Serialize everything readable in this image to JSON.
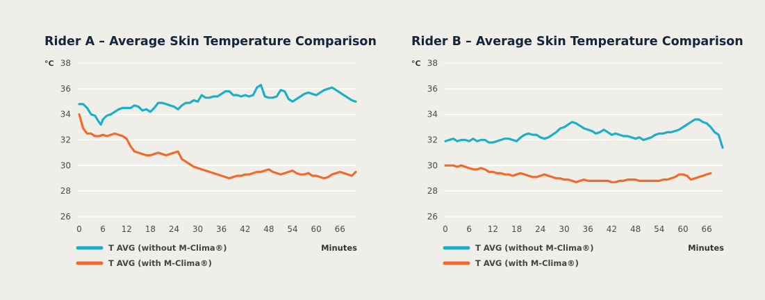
{
  "colors": {
    "background": "#efeee9",
    "without": "#1ab0c9",
    "with": "#f26a2a",
    "title": "#16253a"
  },
  "legend_placement": "bottom-left",
  "chart_data": [
    {
      "type": "line",
      "title": "Rider A – Average Skin Temperature Comparison",
      "ylabel": "°C",
      "xlabel": "Minutes",
      "ylim": [
        26,
        38
      ],
      "xlim": [
        0,
        70
      ],
      "yticks": [
        26,
        28,
        30,
        32,
        34,
        36,
        38
      ],
      "xticks": [
        0,
        6,
        12,
        18,
        24,
        30,
        36,
        42,
        48,
        54,
        60,
        66
      ],
      "grid": true,
      "series": [
        {
          "name": "T AVG (without M-Clima®)",
          "color": "#1ab0c9",
          "x": [
            0,
            1,
            2,
            3,
            4,
            5,
            5.5,
            6,
            7,
            8,
            9,
            10,
            11,
            12,
            13,
            14,
            15,
            16,
            17,
            18,
            19,
            20,
            21,
            22,
            23,
            24,
            25,
            26,
            27,
            28,
            29,
            30,
            31,
            32,
            33,
            34,
            35,
            36,
            37,
            38,
            39,
            40,
            41,
            42,
            43,
            44,
            45,
            46,
            47,
            48,
            49,
            50,
            51,
            52,
            53,
            54,
            55,
            56,
            57,
            58,
            59,
            60,
            61,
            62,
            63,
            64,
            65,
            66,
            67,
            68,
            69,
            70
          ],
          "values": [
            34.8,
            34.8,
            34.5,
            34.0,
            33.9,
            33.4,
            33.2,
            33.6,
            33.9,
            34.0,
            34.2,
            34.4,
            34.5,
            34.5,
            34.5,
            34.7,
            34.6,
            34.3,
            34.4,
            34.2,
            34.5,
            34.9,
            34.9,
            34.8,
            34.7,
            34.6,
            34.4,
            34.7,
            34.9,
            34.9,
            35.1,
            35.0,
            35.5,
            35.3,
            35.3,
            35.4,
            35.4,
            35.6,
            35.8,
            35.8,
            35.5,
            35.5,
            35.4,
            35.5,
            35.4,
            35.5,
            36.1,
            36.3,
            35.4,
            35.3,
            35.3,
            35.4,
            35.9,
            35.8,
            35.2,
            35.0,
            35.2,
            35.4,
            35.6,
            35.7,
            35.6,
            35.5,
            35.7,
            35.9,
            36.0,
            36.1,
            35.9,
            35.7,
            35.5,
            35.3,
            35.1,
            35.0
          ]
        },
        {
          "name": "T AVG (with M-Clima®)",
          "color": "#f26a2a",
          "x": [
            0,
            1,
            2,
            3,
            4,
            5,
            6,
            7,
            8,
            9,
            10,
            11,
            12,
            13,
            14,
            15,
            16,
            17,
            18,
            19,
            20,
            21,
            22,
            23,
            24,
            25,
            26,
            27,
            28,
            29,
            30,
            31,
            32,
            33,
            34,
            35,
            36,
            37,
            38,
            39,
            40,
            41,
            42,
            43,
            44,
            45,
            46,
            47,
            48,
            49,
            50,
            51,
            52,
            53,
            54,
            55,
            56,
            57,
            58,
            59,
            60,
            61,
            62,
            63,
            64,
            65,
            66,
            67,
            68,
            69,
            70
          ],
          "values": [
            34.0,
            32.9,
            32.5,
            32.5,
            32.3,
            32.3,
            32.4,
            32.3,
            32.4,
            32.5,
            32.4,
            32.3,
            32.1,
            31.5,
            31.1,
            31.0,
            30.9,
            30.8,
            30.8,
            30.9,
            31.0,
            30.9,
            30.8,
            30.9,
            31.0,
            31.1,
            30.5,
            30.3,
            30.1,
            29.9,
            29.8,
            29.7,
            29.6,
            29.5,
            29.4,
            29.3,
            29.2,
            29.1,
            29.0,
            29.1,
            29.2,
            29.2,
            29.3,
            29.3,
            29.4,
            29.5,
            29.5,
            29.6,
            29.7,
            29.5,
            29.4,
            29.3,
            29.4,
            29.5,
            29.6,
            29.4,
            29.3,
            29.3,
            29.4,
            29.2,
            29.2,
            29.1,
            29.0,
            29.1,
            29.3,
            29.4,
            29.5,
            29.4,
            29.3,
            29.2,
            29.5
          ]
        }
      ]
    },
    {
      "type": "line",
      "title": "Rider B – Average Skin Temperature Comparison",
      "ylabel": "°C",
      "xlabel": "Minutes",
      "ylim": [
        26,
        38
      ],
      "xlim": [
        0,
        70
      ],
      "yticks": [
        26,
        28,
        30,
        32,
        34,
        36,
        38
      ],
      "xticks": [
        0,
        6,
        12,
        18,
        24,
        30,
        36,
        42,
        48,
        54,
        60,
        66
      ],
      "grid": true,
      "series": [
        {
          "name": "T AVG (without M-Clima®)",
          "color": "#1ab0c9",
          "x": [
            0,
            1,
            2,
            3,
            4,
            5,
            6,
            7,
            8,
            9,
            10,
            11,
            12,
            13,
            14,
            15,
            16,
            17,
            18,
            19,
            20,
            21,
            22,
            23,
            24,
            25,
            26,
            27,
            28,
            29,
            30,
            31,
            32,
            33,
            34,
            35,
            36,
            37,
            38,
            39,
            40,
            41,
            42,
            43,
            44,
            45,
            46,
            47,
            48,
            49,
            50,
            51,
            52,
            53,
            54,
            55,
            56,
            57,
            58,
            59,
            60,
            61,
            62,
            63,
            64,
            65,
            66,
            67,
            68,
            69,
            70
          ],
          "values": [
            31.9,
            32.0,
            32.1,
            31.9,
            32.0,
            32.0,
            31.9,
            32.1,
            31.9,
            32.0,
            32.0,
            31.8,
            31.8,
            31.9,
            32.0,
            32.1,
            32.1,
            32.0,
            31.9,
            32.2,
            32.4,
            32.5,
            32.4,
            32.4,
            32.2,
            32.1,
            32.2,
            32.4,
            32.6,
            32.9,
            33.0,
            33.2,
            33.4,
            33.3,
            33.1,
            32.9,
            32.8,
            32.7,
            32.5,
            32.6,
            32.8,
            32.6,
            32.4,
            32.5,
            32.4,
            32.3,
            32.3,
            32.2,
            32.1,
            32.2,
            32.0,
            32.1,
            32.2,
            32.4,
            32.5,
            32.5,
            32.6,
            32.6,
            32.7,
            32.8,
            33.0,
            33.2,
            33.4,
            33.6,
            33.6,
            33.4,
            33.3,
            33.0,
            32.6,
            32.4,
            31.4
          ]
        },
        {
          "name": "T AVG (with M-Clima®)",
          "color": "#f26a2a",
          "x": [
            0,
            1,
            2,
            3,
            4,
            5,
            6,
            7,
            8,
            9,
            10,
            11,
            12,
            13,
            14,
            15,
            16,
            17,
            18,
            19,
            20,
            21,
            22,
            23,
            24,
            25,
            26,
            27,
            28,
            29,
            30,
            31,
            32,
            33,
            34,
            35,
            36,
            37,
            38,
            39,
            40,
            41,
            42,
            43,
            44,
            45,
            46,
            47,
            48,
            49,
            50,
            51,
            52,
            53,
            54,
            55,
            56,
            57,
            58,
            59,
            60,
            61,
            62,
            63,
            64,
            65,
            66,
            67
          ],
          "values": [
            30.0,
            30.0,
            30.0,
            29.9,
            30.0,
            29.9,
            29.8,
            29.7,
            29.7,
            29.8,
            29.7,
            29.5,
            29.5,
            29.4,
            29.4,
            29.3,
            29.3,
            29.2,
            29.3,
            29.4,
            29.3,
            29.2,
            29.1,
            29.1,
            29.2,
            29.3,
            29.2,
            29.1,
            29.0,
            29.0,
            28.9,
            28.9,
            28.8,
            28.7,
            28.8,
            28.9,
            28.8,
            28.8,
            28.8,
            28.8,
            28.8,
            28.8,
            28.7,
            28.7,
            28.8,
            28.8,
            28.9,
            28.9,
            28.9,
            28.8,
            28.8,
            28.8,
            28.8,
            28.8,
            28.8,
            28.9,
            28.9,
            29.0,
            29.1,
            29.3,
            29.3,
            29.2,
            28.9,
            29.0,
            29.1,
            29.2,
            29.3,
            29.4
          ]
        }
      ]
    }
  ]
}
